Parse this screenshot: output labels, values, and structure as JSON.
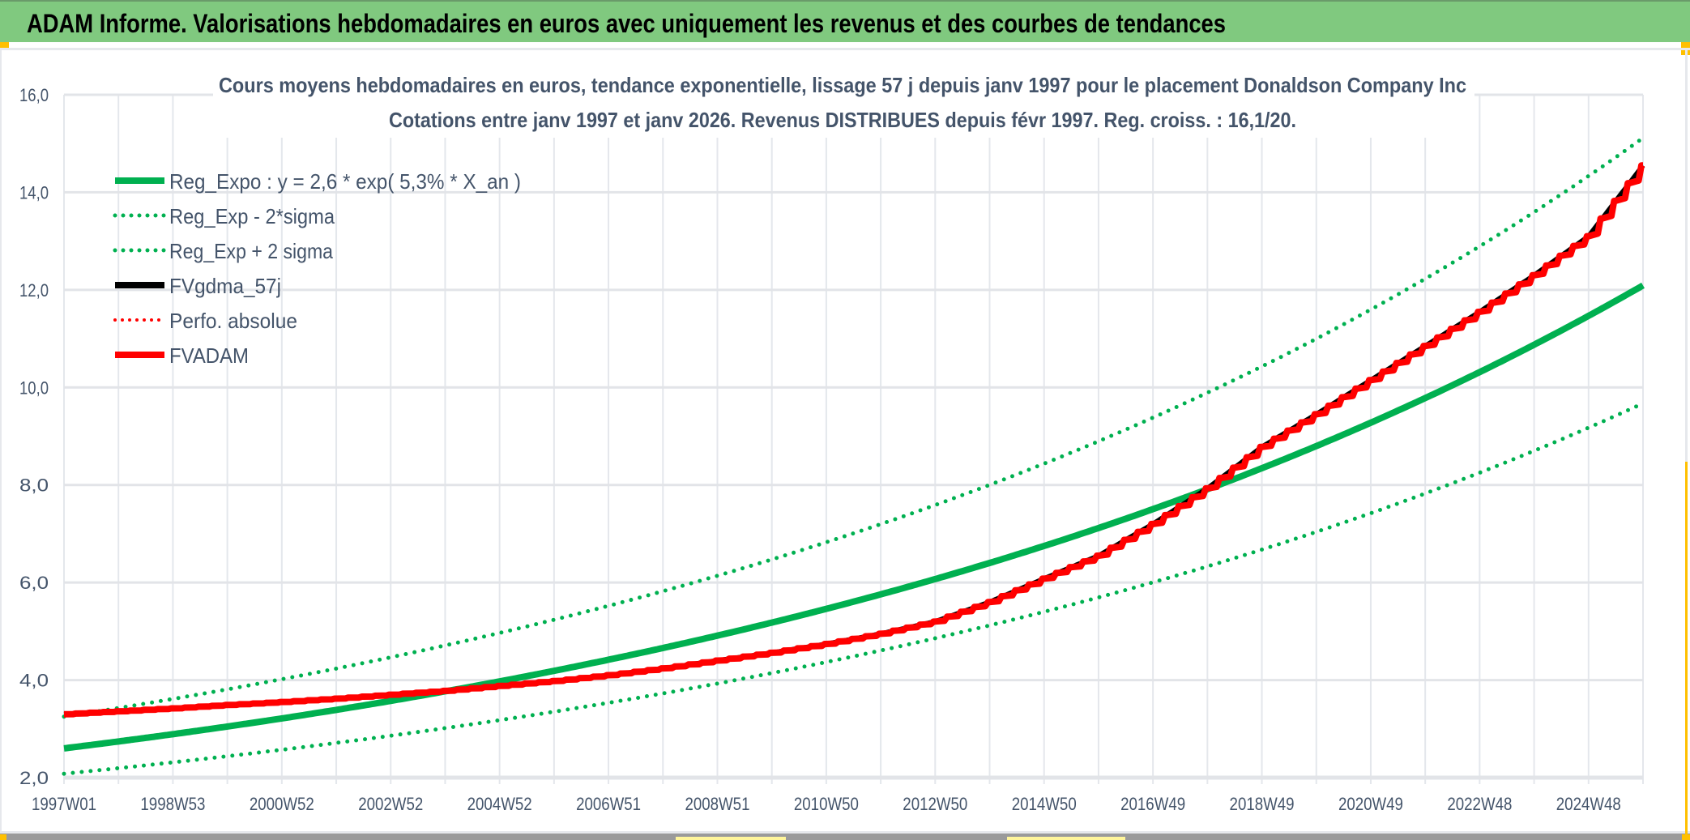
{
  "header": {
    "title": "ADAM Informe. Valorisations hebdomadaires en euros avec uniquement les revenus et des courbes de tendances"
  },
  "colors": {
    "header_bg": "#80c97f",
    "reg_green": "#00b050",
    "adam_red": "#ff0000",
    "gdma_black": "#000000",
    "text": "#44546a",
    "handle": "#ffc000"
  },
  "chart_data": {
    "type": "line",
    "title": "Cours moyens hebdomadaires en euros, tendance exponentielle, lissage 57 j depuis janv 1997 pour le placement Donaldson Company Inc",
    "subtitle": "Cotations entre janv 1997 et janv 2026. Revenus DISTRIBUES depuis févr 1997. Reg. croiss. : 16,1/20.",
    "xlabel": "",
    "ylabel": "",
    "ylim": [
      2,
      16
    ],
    "yticks": [
      "2,0",
      "4,0",
      "6,0",
      "8,0",
      "10,0",
      "12,0",
      "14,0",
      "16,0"
    ],
    "xlim_years": [
      1997,
      2026
    ],
    "xticks": [
      "1997W01",
      "1998W53",
      "2000W52",
      "2002W52",
      "2004W52",
      "2006W51",
      "2008W51",
      "2010W50",
      "2012W50",
      "2014W50",
      "2016W49",
      "2018W49",
      "2020W49",
      "2022W48",
      "2024W48"
    ],
    "grid": true,
    "legend_position": "top-left",
    "regression": {
      "a": 2.6,
      "rate": 0.053,
      "lower_factor": 0.8,
      "upper_factor": 1.25
    },
    "x": [
      1997,
      1998,
      1999,
      2000,
      2001,
      2002,
      2003,
      2004,
      2005,
      2006,
      2007,
      2008,
      2009,
      2010,
      2011,
      2012,
      2013,
      2014,
      2015,
      2016,
      2017,
      2018,
      2019,
      2020,
      2021,
      2022,
      2023,
      2024,
      2025,
      2026
    ],
    "series": [
      {
        "name": "Reg_Expo : y = 2,6 * exp( 5,3% *  X_an )",
        "style": "solid-green"
      },
      {
        "name": "Reg_Exp - 2*sigma",
        "style": "dotted-green"
      },
      {
        "name": "Reg_Exp + 2 sigma",
        "style": "dotted-green"
      },
      {
        "name": "FVgdma_57j",
        "style": "solid-black",
        "values": [
          3.3,
          3.36,
          3.42,
          3.49,
          3.55,
          3.62,
          3.7,
          3.78,
          3.88,
          3.98,
          4.1,
          4.24,
          4.4,
          4.56,
          4.74,
          4.95,
          5.2,
          5.6,
          6.08,
          6.55,
          7.2,
          7.93,
          8.78,
          9.45,
          10.15,
          10.85,
          11.55,
          12.3,
          13.1,
          14.55
        ]
      },
      {
        "name": "Perfo. absolue",
        "style": "dotted-red"
      },
      {
        "name": "FVADAM",
        "style": "solid-red",
        "values": [
          3.3,
          3.36,
          3.42,
          3.49,
          3.55,
          3.62,
          3.7,
          3.78,
          3.88,
          3.98,
          4.1,
          4.24,
          4.4,
          4.56,
          4.74,
          4.95,
          5.2,
          5.6,
          6.08,
          6.55,
          7.2,
          7.93,
          8.78,
          9.45,
          10.15,
          10.85,
          11.55,
          12.3,
          13.1,
          14.55
        ]
      }
    ]
  }
}
